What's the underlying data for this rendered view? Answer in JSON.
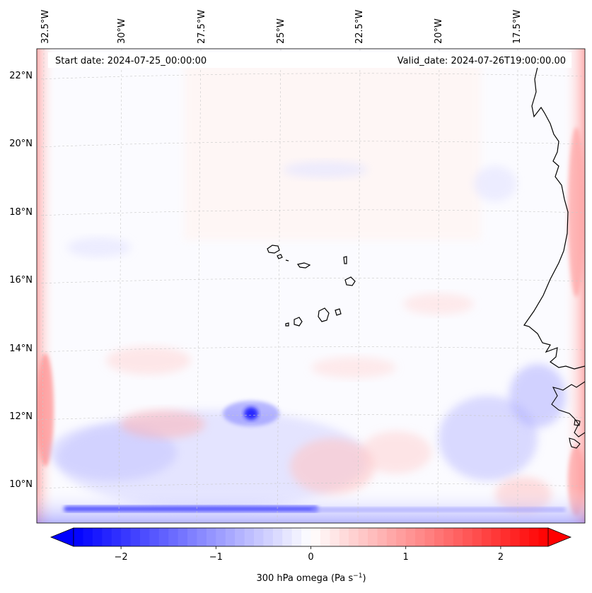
{
  "map": {
    "start_date": "Start date: 2024-07-25_00:00:00",
    "valid_date": "Valid_date: 2024-07-26T19:00:00.00",
    "lon_labels": [
      "32.5°W",
      "30°W",
      "27.5°W",
      "25°W",
      "22.5°W",
      "20°W",
      "17.5°W"
    ],
    "lat_labels": [
      "22°N",
      "20°N",
      "18°N",
      "16°N",
      "14°N",
      "12°N",
      "10°N"
    ],
    "colors": {
      "negative": "#0000ff",
      "zero": "#ffffff",
      "positive": "#ff0000",
      "coast": "#000000"
    }
  },
  "colorbar": {
    "tick_labels": [
      "−2",
      "−1",
      "0",
      "1",
      "2"
    ],
    "tick_values": [
      -2,
      -1,
      0,
      1,
      2
    ],
    "range": [
      -2.5,
      2.5
    ],
    "levels": 50,
    "extend": "both",
    "label": "300 hPa omega (Pa s",
    "label_sup": "−1",
    "label_end": ")"
  }
}
